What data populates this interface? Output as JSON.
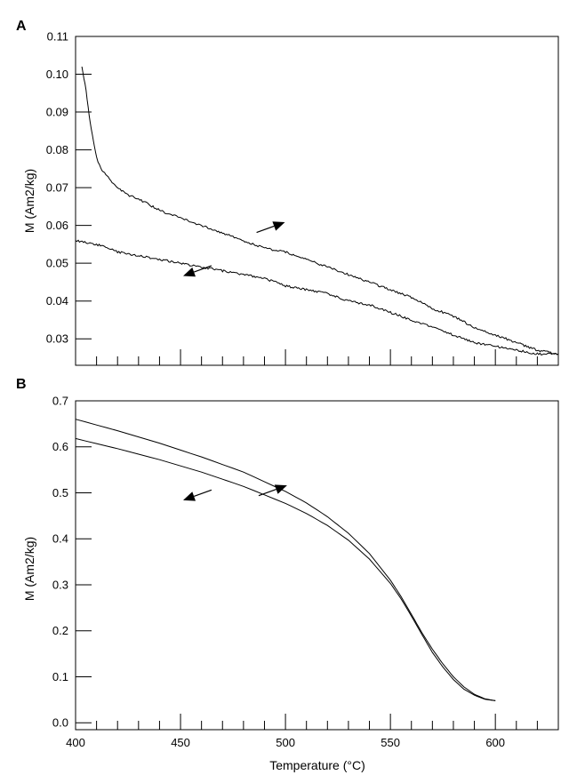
{
  "chart_data": [
    {
      "type": "line",
      "panel_label": "A",
      "xlabel": "",
      "ylabel": "M (Am2/kg)",
      "xlim": [
        400,
        630
      ],
      "ylim": [
        0.023,
        0.11
      ],
      "x_ticks_labeled": [],
      "y_ticks": [
        "0.03",
        "0.04",
        "0.05",
        "0.06",
        "0.07",
        "0.08",
        "0.09",
        "0.10",
        "0.11"
      ],
      "series": [
        {
          "direction": "heating",
          "x": [
            403,
            404,
            405,
            406,
            407,
            408,
            409,
            410,
            412,
            415,
            418,
            420,
            425,
            430,
            440,
            450,
            460,
            470,
            480,
            490,
            500,
            510,
            520,
            530,
            540,
            550,
            560,
            570,
            580,
            590,
            600,
            610,
            620,
            630
          ],
          "y": [
            0.102,
            0.099,
            0.096,
            0.091,
            0.087,
            0.084,
            0.081,
            0.078,
            0.075,
            0.073,
            0.071,
            0.07,
            0.068,
            0.067,
            0.064,
            0.062,
            0.06,
            0.058,
            0.056,
            0.054,
            0.053,
            0.051,
            0.049,
            0.047,
            0.045,
            0.043,
            0.041,
            0.038,
            0.036,
            0.033,
            0.031,
            0.029,
            0.027,
            0.026
          ]
        },
        {
          "direction": "cooling",
          "x": [
            400,
            410,
            420,
            430,
            440,
            450,
            460,
            470,
            480,
            490,
            500,
            510,
            520,
            530,
            540,
            550,
            560,
            570,
            580,
            590,
            600,
            610,
            620,
            630
          ],
          "y": [
            0.056,
            0.055,
            0.053,
            0.052,
            0.051,
            0.05,
            0.049,
            0.048,
            0.047,
            0.046,
            0.044,
            0.043,
            0.042,
            0.04,
            0.039,
            0.037,
            0.035,
            0.033,
            0.031,
            0.029,
            0.028,
            0.027,
            0.026,
            0.026
          ]
        }
      ],
      "arrows": [
        {
          "direction": "right",
          "x": 493,
          "y": 0.0595
        },
        {
          "direction": "left",
          "x": 458,
          "y": 0.048
        }
      ]
    },
    {
      "type": "line",
      "panel_label": "B",
      "xlabel": "Temperature (°C)",
      "ylabel": "M (Am2/kg)",
      "xlim": [
        400,
        630
      ],
      "ylim": [
        -0.015,
        0.7
      ],
      "x_ticks_labeled": [
        "400",
        "450",
        "500",
        "550",
        "600"
      ],
      "y_ticks": [
        "0.0",
        "0.1",
        "0.2",
        "0.3",
        "0.4",
        "0.5",
        "0.6",
        "0.7"
      ],
      "series": [
        {
          "direction": "heating",
          "x": [
            400,
            420,
            440,
            460,
            480,
            500,
            510,
            520,
            530,
            540,
            550,
            555,
            560,
            565,
            570,
            575,
            580,
            585,
            590,
            595,
            600
          ],
          "y": [
            0.66,
            0.635,
            0.608,
            0.578,
            0.545,
            0.503,
            0.478,
            0.448,
            0.412,
            0.368,
            0.31,
            0.275,
            0.236,
            0.196,
            0.16,
            0.128,
            0.1,
            0.078,
            0.062,
            0.052,
            0.048
          ]
        },
        {
          "direction": "cooling",
          "x": [
            400,
            420,
            440,
            460,
            480,
            500,
            510,
            520,
            530,
            540,
            550,
            555,
            560,
            565,
            570,
            575,
            580,
            585,
            590,
            595,
            600
          ],
          "y": [
            0.618,
            0.596,
            0.572,
            0.545,
            0.514,
            0.477,
            0.455,
            0.429,
            0.397,
            0.356,
            0.303,
            0.27,
            0.232,
            0.192,
            0.153,
            0.121,
            0.094,
            0.073,
            0.06,
            0.051,
            0.048
          ]
        }
      ],
      "arrows": [
        {
          "direction": "right",
          "x": 494,
          "y": 0.505
        },
        {
          "direction": "left",
          "x": 458,
          "y": 0.495
        }
      ]
    }
  ]
}
